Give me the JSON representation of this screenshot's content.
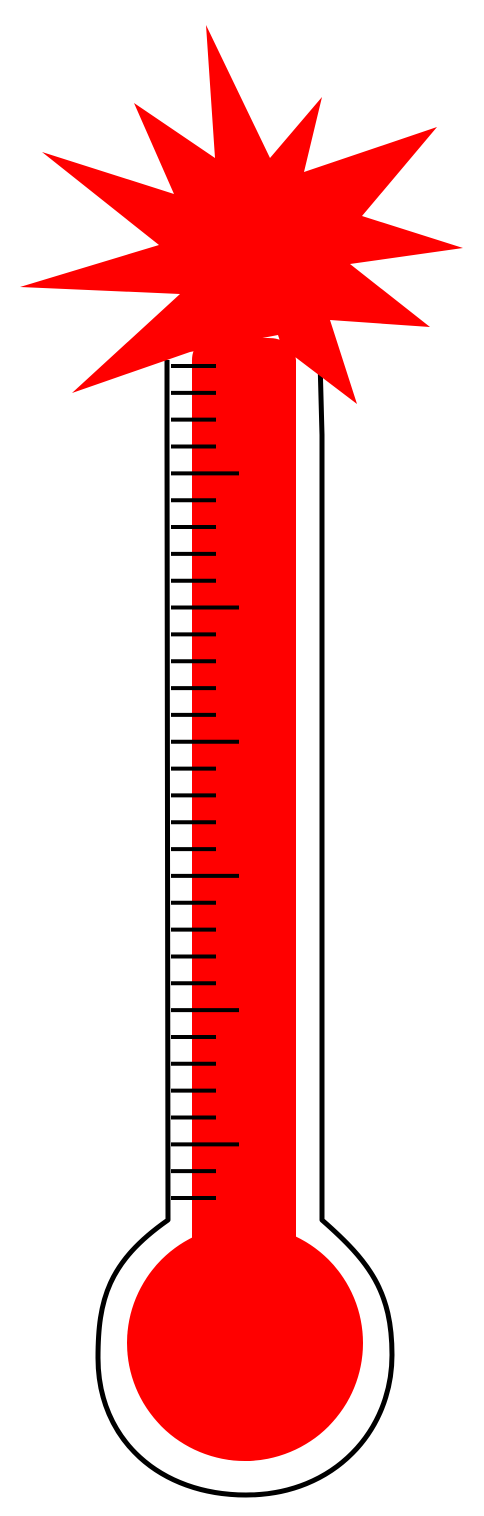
{
  "thermometer": {
    "fill_level": 1.0,
    "state": "overflowing",
    "tick_count": 32,
    "major_tick_every": 5,
    "colors": {
      "mercury": "#ff0000",
      "outline": "#000000",
      "background": "#ffffff"
    },
    "icons": {
      "burst": "burst-star-icon",
      "bulb": "bulb-icon"
    }
  }
}
